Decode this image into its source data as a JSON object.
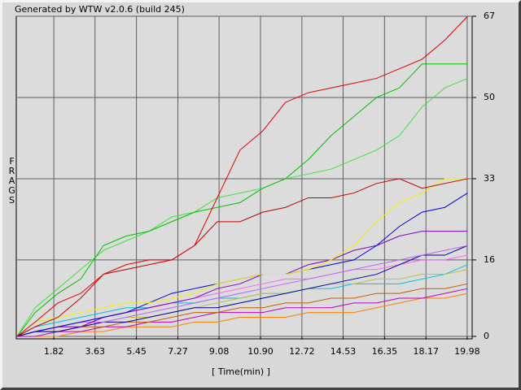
{
  "chart_data": {
    "type": "line",
    "title": "Generated by WTW v2.0.6 (build 245)",
    "y_label": "FRAGS",
    "x_label": "[ Time(min) ]",
    "x": [
      0.2,
      1,
      2,
      3,
      4,
      5,
      6,
      7,
      8,
      9,
      10,
      11,
      12,
      13,
      14,
      15,
      16,
      17,
      18,
      19,
      20
    ],
    "xlim": [
      0.17,
      20.2
    ],
    "xticks": [
      1.82,
      3.63,
      5.45,
      7.27,
      9.08,
      {
        "value": 10.9,
        "label": "10.90"
      },
      12.72,
      14.53,
      16.35,
      18.17,
      19.98
    ],
    "ylim": [
      0,
      67
    ],
    "yticks": [
      0,
      16,
      33,
      50,
      67
    ],
    "grid": true,
    "series": [
      {
        "color": "#e00000",
        "values": [
          0,
          3,
          7,
          9,
          13,
          15,
          16,
          16,
          19,
          29,
          39,
          43,
          49,
          51,
          52,
          53,
          54,
          56,
          58,
          62,
          67
        ]
      },
      {
        "color": "#00c000",
        "values": [
          0,
          5,
          9,
          12,
          19,
          21,
          22,
          24,
          26,
          27,
          28,
          31,
          33,
          37,
          42,
          46,
          50,
          52,
          57,
          57,
          57
        ]
      },
      {
        "color": "#40e040",
        "values": [
          0,
          6,
          10,
          14,
          18,
          20,
          22,
          25,
          26,
          29,
          30,
          31,
          33,
          34,
          35,
          37,
          39,
          42,
          48,
          52,
          54
        ]
      },
      {
        "color": "#c00000",
        "values": [
          0,
          2,
          4,
          8,
          13,
          14,
          15,
          16,
          19,
          24,
          24,
          26,
          27,
          29,
          29,
          30,
          32,
          33,
          31,
          32,
          33
        ]
      },
      {
        "color": "#f0f000",
        "values": [
          0,
          3,
          4,
          5,
          6,
          7,
          7,
          8,
          9,
          11,
          12,
          13,
          13,
          14,
          16,
          19,
          24,
          28,
          30,
          33,
          33
        ]
      },
      {
        "color": "#0000e0",
        "values": [
          0,
          1,
          2,
          3,
          4,
          5,
          7,
          9,
          10,
          11,
          12,
          13,
          13,
          14,
          15,
          16,
          19,
          23,
          26,
          27,
          30
        ]
      },
      {
        "color": "#8000c0",
        "values": [
          0,
          1,
          2,
          2,
          4,
          5,
          6,
          7,
          8,
          10,
          11,
          13,
          13,
          15,
          16,
          18,
          19,
          21,
          22,
          22,
          22
        ]
      },
      {
        "color": "#c060ff",
        "values": [
          0,
          1,
          2,
          3,
          3,
          4,
          5,
          6,
          7,
          8,
          9,
          10,
          11,
          12,
          13,
          14,
          15,
          16,
          17,
          18,
          19
        ]
      },
      {
        "color": "#0000a0",
        "values": [
          0,
          1,
          1,
          2,
          3,
          3,
          4,
          5,
          6,
          6,
          7,
          8,
          9,
          10,
          11,
          12,
          13,
          15,
          17,
          17,
          19
        ]
      },
      {
        "color": "#ff60ff",
        "values": [
          0,
          1,
          2,
          3,
          4,
          5,
          6,
          7,
          8,
          9,
          10,
          11,
          12,
          12,
          13,
          14,
          14,
          15,
          16,
          16,
          17
        ]
      },
      {
        "color": "#c0c040",
        "values": [
          0,
          1,
          2,
          2,
          3,
          4,
          4,
          5,
          6,
          7,
          8,
          9,
          9,
          10,
          11,
          11,
          12,
          12,
          13,
          13,
          14
        ]
      },
      {
        "color": "#00c0e0",
        "values": [
          0,
          2,
          3,
          4,
          5,
          6,
          6,
          7,
          7,
          8,
          8,
          9,
          9,
          10,
          10,
          11,
          11,
          11,
          12,
          13,
          15
        ]
      },
      {
        "color": "#c06000",
        "values": [
          0,
          1,
          1,
          2,
          2,
          3,
          3,
          4,
          5,
          5,
          6,
          6,
          7,
          7,
          8,
          8,
          9,
          9,
          10,
          10,
          11
        ]
      },
      {
        "color": "#c000c0",
        "values": [
          0,
          0,
          1,
          1,
          2,
          2,
          3,
          3,
          4,
          5,
          5,
          5,
          6,
          6,
          6,
          7,
          7,
          8,
          8,
          9,
          10
        ]
      },
      {
        "color": "#ff8000",
        "values": [
          0,
          0,
          0,
          1,
          1,
          2,
          2,
          2,
          3,
          3,
          4,
          4,
          4,
          5,
          5,
          5,
          6,
          7,
          8,
          8,
          9
        ]
      }
    ]
  }
}
